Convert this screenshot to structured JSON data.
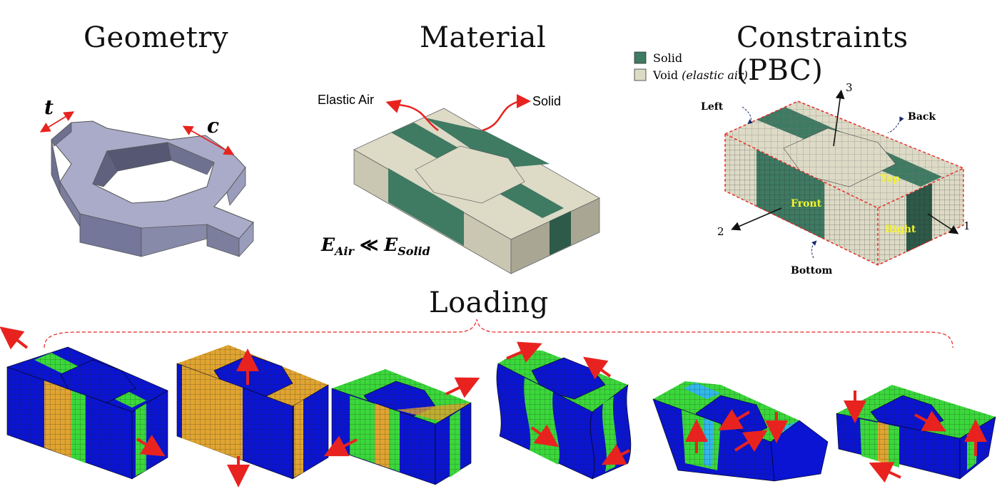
{
  "titles": {
    "geometry": "Geometry",
    "material": "Material",
    "constraints": "Constraints (PBC)",
    "loading": "Loading"
  },
  "geometry": {
    "t_label": "t",
    "c_label": "c"
  },
  "material": {
    "air_label": "Elastic Air",
    "solid_label": "Solid",
    "equation_lhs": "E",
    "equation_lhs_sub": "Air",
    "equation_rel": "≪",
    "equation_rhs": "E",
    "equation_rhs_sub": "Solid"
  },
  "constraints": {
    "legend": [
      {
        "label": "Solid",
        "color": "#3f7a63"
      },
      {
        "label": "Void",
        "italic": "(elastic air)",
        "color": "#dddac6"
      }
    ],
    "faces": {
      "left": "Left",
      "back": "Back",
      "front": "Front",
      "top": "Top",
      "right": "Right",
      "bottom": "Bottom"
    },
    "axes": {
      "a1": "1",
      "a2": "2",
      "a3": "3"
    }
  },
  "colors": {
    "solid": "#3f7a63",
    "void": "#dddac6",
    "void_side": "#b9b6a3",
    "geometry": "#a9abc8",
    "fem_blue": "#0a14d2",
    "fem_green": "#3ad83a",
    "fem_orange": "#e0a430",
    "arrow": "#e8231f",
    "face_label": "#f5f52a"
  }
}
